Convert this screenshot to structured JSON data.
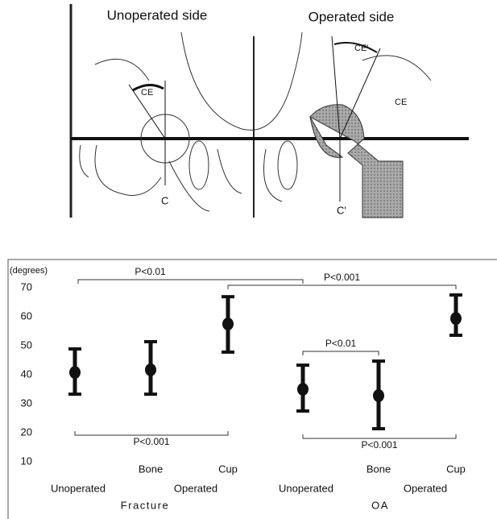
{
  "diagram": {
    "left_title": "Unoperated side",
    "right_title": "Operated side",
    "left_angle": "CE",
    "right_angle": "CE'",
    "right_angle_ref": "CE",
    "left_axis": "C",
    "right_axis": "C'"
  },
  "chart_data": {
    "type": "errorbar",
    "ylabel": "(degrees)",
    "ylim": [
      10,
      70
    ],
    "yticks": [
      10,
      20,
      30,
      40,
      50,
      60,
      70
    ],
    "categories": [
      null,
      "Bone",
      "Cup",
      null,
      "Bone",
      "Cup"
    ],
    "subgroups": [
      "Unoperated",
      "Operated",
      "Unoperated",
      "Operated"
    ],
    "groups": [
      "Fracture",
      "OA"
    ],
    "series": [
      {
        "color": "#111111",
        "values": [
          40.8,
          41.7,
          57.5,
          35.0,
          32.8,
          59.4
        ],
        "error_low": [
          33.3,
          33.3,
          47.8,
          27.5,
          21.4,
          53.6
        ],
        "error_high": [
          48.9,
          51.4,
          66.9,
          43.3,
          44.7,
          67.5
        ]
      }
    ],
    "brackets": [
      {
        "from": 0,
        "to": 3,
        "label": "P<0.01"
      },
      {
        "from": 2,
        "to": 5,
        "label": "P<0.001"
      },
      {
        "from": 3,
        "to": 4,
        "label": "P<0.01"
      },
      {
        "from": 0,
        "to": 2,
        "label": "P<0.001"
      },
      {
        "from": 3,
        "to": 5,
        "label": "P<0.001"
      }
    ]
  }
}
